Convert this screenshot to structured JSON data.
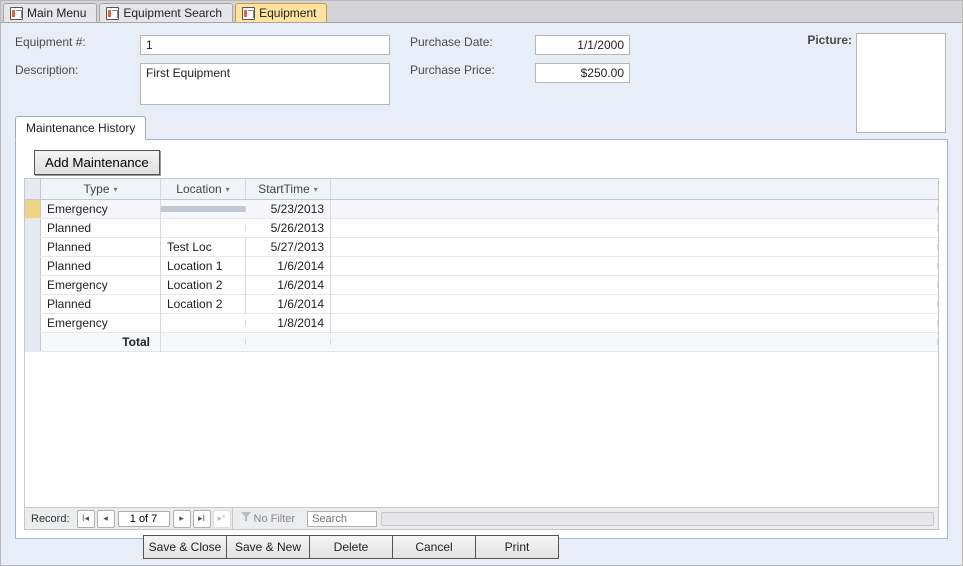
{
  "tabs": [
    {
      "label": "Main Menu",
      "active": false
    },
    {
      "label": "Equipment Search",
      "active": false
    },
    {
      "label": "Equipment",
      "active": true
    }
  ],
  "form": {
    "equipNoLabel": "Equipment #:",
    "equipNo": "1",
    "descLabel": "Description:",
    "desc": "First Equipment",
    "purchaseDateLabel": "Purchase Date:",
    "purchaseDate": "1/1/2000",
    "purchasePriceLabel": "Purchase Price:",
    "purchasePrice": "$250.00",
    "pictureLabel": "Picture:"
  },
  "subtab": {
    "label": "Maintenance History"
  },
  "addMaint": "Add Maintenance",
  "grid": {
    "headers": {
      "type": "Type",
      "location": "Location",
      "start": "StartTime"
    },
    "rows": [
      {
        "type": "Emergency",
        "location": "",
        "start": "5/23/2013",
        "selected": true
      },
      {
        "type": "Planned",
        "location": "",
        "start": "5/26/2013"
      },
      {
        "type": "Planned",
        "location": "Test Loc",
        "start": "5/27/2013"
      },
      {
        "type": "Planned",
        "location": "Location 1",
        "start": "1/6/2014"
      },
      {
        "type": "Emergency",
        "location": "Location 2",
        "start": "1/6/2014"
      },
      {
        "type": "Planned",
        "location": "Location 2",
        "start": "1/6/2014"
      },
      {
        "type": "Emergency",
        "location": "",
        "start": "1/8/2014"
      }
    ],
    "totalLabel": "Total"
  },
  "recordnav": {
    "label": "Record:",
    "pos": "1 of 7",
    "noFilter": "No Filter",
    "searchPlaceholder": "Search"
  },
  "toolbar": {
    "saveClose": "Save & Close",
    "saveNew": "Save & New",
    "delete": "Delete",
    "cancel": "Cancel",
    "print": "Print"
  },
  "colors": {
    "pageBg": "#e8eef7",
    "tabbarBg": "#d4d4d8",
    "activeTab": "#ffe39f",
    "subformBorder": "#9fb6d8",
    "gridHeaderBg": "#f0f3f7",
    "selectedLocBg": "#c1c9d6"
  }
}
